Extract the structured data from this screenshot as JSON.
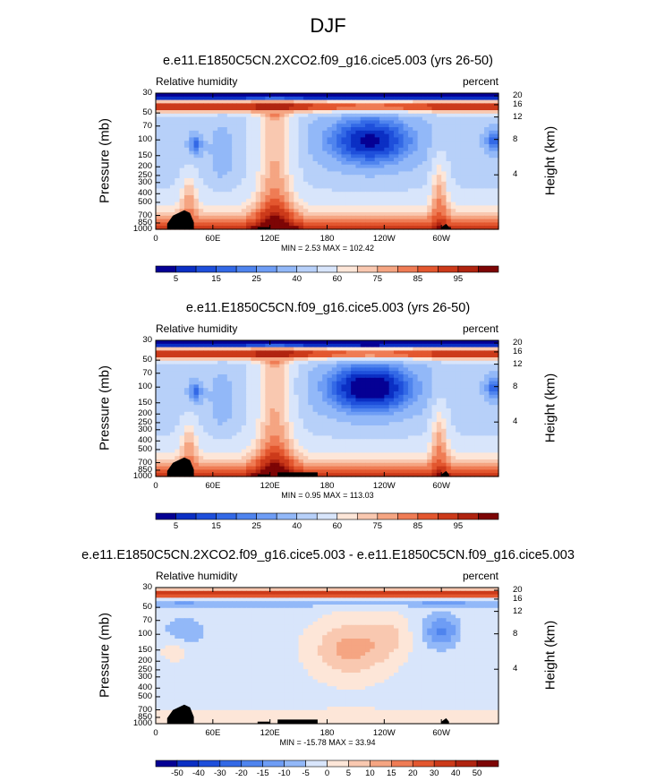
{
  "title": "DJF",
  "chart_data": [
    {
      "type": "heatmap",
      "title": "e.e11.E1850C5CN.2XCO2.f09_g16.cice5.003 (yrs 26-50)",
      "left_label": "Relative humidity",
      "right_label": "percent",
      "ylabel": "Pressure (mb)",
      "ylabel_right": "Height (km)",
      "x_ticks": [
        "0",
        "60E",
        "120E",
        "180",
        "120W",
        "60W"
      ],
      "x_tick_values": [
        0,
        60,
        120,
        180,
        240,
        300
      ],
      "xlim": [
        0,
        360
      ],
      "y_ticks": [
        "30",
        "50",
        "70",
        "100",
        "150",
        "200",
        "250",
        "300",
        "400",
        "500",
        "700",
        "850",
        "1000"
      ],
      "y_tick_values": [
        30,
        50,
        70,
        100,
        150,
        200,
        250,
        300,
        400,
        500,
        700,
        850,
        1000
      ],
      "ylim": [
        1000,
        30
      ],
      "height_ticks": [
        "20",
        "16",
        "12",
        "8",
        "4"
      ],
      "height_tick_values": [
        20,
        16,
        12,
        8,
        4
      ],
      "min_max": "MIN =   2.53  MAX = 102.42",
      "min": 2.53,
      "max": 102.42,
      "colorbar": {
        "labels": [
          "5",
          "15",
          "25",
          "40",
          "60",
          "75",
          "85",
          "95"
        ],
        "levels": [
          5,
          10,
          15,
          20,
          25,
          30,
          40,
          50,
          60,
          65,
          70,
          75,
          80,
          85,
          90,
          95
        ],
        "colors": [
          "#050094",
          "#0b2fc4",
          "#1e4fdb",
          "#3369e6",
          "#4f84ee",
          "#6e9df5",
          "#92b8f8",
          "#b7d0f9",
          "#d8e5fb",
          "#fde6d8",
          "#f9c8b0",
          "#f5a582",
          "#ef7c55",
          "#e3572f",
          "#cc3a1a",
          "#b02410",
          "#7d0505"
        ]
      },
      "variant": "a"
    },
    {
      "type": "heatmap",
      "title": "e.e11.E1850C5CN.f09_g16.cice5.003 (yrs 26-50)",
      "left_label": "Relative humidity",
      "right_label": "percent",
      "ylabel": "Pressure (mb)",
      "ylabel_right": "Height (km)",
      "x_ticks": [
        "0",
        "60E",
        "120E",
        "180",
        "120W",
        "60W"
      ],
      "x_tick_values": [
        0,
        60,
        120,
        180,
        240,
        300
      ],
      "xlim": [
        0,
        360
      ],
      "y_ticks": [
        "30",
        "50",
        "70",
        "100",
        "150",
        "200",
        "250",
        "300",
        "400",
        "500",
        "700",
        "850",
        "1000"
      ],
      "y_tick_values": [
        30,
        50,
        70,
        100,
        150,
        200,
        250,
        300,
        400,
        500,
        700,
        850,
        1000
      ],
      "ylim": [
        1000,
        30
      ],
      "height_ticks": [
        "20",
        "16",
        "12",
        "8",
        "4"
      ],
      "height_tick_values": [
        20,
        16,
        12,
        8,
        4
      ],
      "min_max": "MIN =   0.95  MAX = 113.03",
      "min": 0.95,
      "max": 113.03,
      "colorbar": {
        "labels": [
          "5",
          "15",
          "25",
          "40",
          "60",
          "75",
          "85",
          "95"
        ],
        "levels": [
          5,
          10,
          15,
          20,
          25,
          30,
          40,
          50,
          60,
          65,
          70,
          75,
          80,
          85,
          90,
          95
        ],
        "colors": [
          "#050094",
          "#0b2fc4",
          "#1e4fdb",
          "#3369e6",
          "#4f84ee",
          "#6e9df5",
          "#92b8f8",
          "#b7d0f9",
          "#d8e5fb",
          "#fde6d8",
          "#f9c8b0",
          "#f5a582",
          "#ef7c55",
          "#e3572f",
          "#cc3a1a",
          "#b02410",
          "#7d0505"
        ]
      },
      "variant": "b"
    },
    {
      "type": "heatmap",
      "title": "e.e11.E1850C5CN.2XCO2.f09_g16.cice5.003 - e.e11.E1850C5CN.f09_g16.cice5.003",
      "left_label": "Relative humidity",
      "right_label": "percent",
      "ylabel": "Pressure (mb)",
      "ylabel_right": "Height (km)",
      "x_ticks": [
        "0",
        "60E",
        "120E",
        "180",
        "120W",
        "60W"
      ],
      "x_tick_values": [
        0,
        60,
        120,
        180,
        240,
        300
      ],
      "xlim": [
        0,
        360
      ],
      "y_ticks": [
        "30",
        "50",
        "70",
        "100",
        "150",
        "200",
        "250",
        "300",
        "400",
        "500",
        "700",
        "850",
        "1000"
      ],
      "y_tick_values": [
        30,
        50,
        70,
        100,
        150,
        200,
        250,
        300,
        400,
        500,
        700,
        850,
        1000
      ],
      "ylim": [
        1000,
        30
      ],
      "height_ticks": [
        "20",
        "16",
        "12",
        "8",
        "4"
      ],
      "height_tick_values": [
        20,
        16,
        12,
        8,
        4
      ],
      "min_max": "MIN = -15.78  MAX =  33.94",
      "min": -15.78,
      "max": 33.94,
      "colorbar": {
        "labels": [
          "-50",
          "-40",
          "-30",
          "-20",
          "-15",
          "-10",
          "-5",
          "0",
          "5",
          "10",
          "15",
          "20",
          "30",
          "40",
          "50"
        ],
        "levels": [
          -50,
          -40,
          -30,
          -20,
          -15,
          -10,
          -5,
          0,
          5,
          10,
          15,
          20,
          30,
          40,
          50
        ],
        "colors": [
          "#050094",
          "#0b2fc4",
          "#1e4fdb",
          "#3369e6",
          "#4f84ee",
          "#6e9df5",
          "#92b8f8",
          "#d8e5fb",
          "#fde6d8",
          "#f9c8b0",
          "#f5a582",
          "#ef7c55",
          "#e3572f",
          "#cc3a1a",
          "#b02410",
          "#7d0505"
        ]
      },
      "variant": "diff"
    }
  ]
}
